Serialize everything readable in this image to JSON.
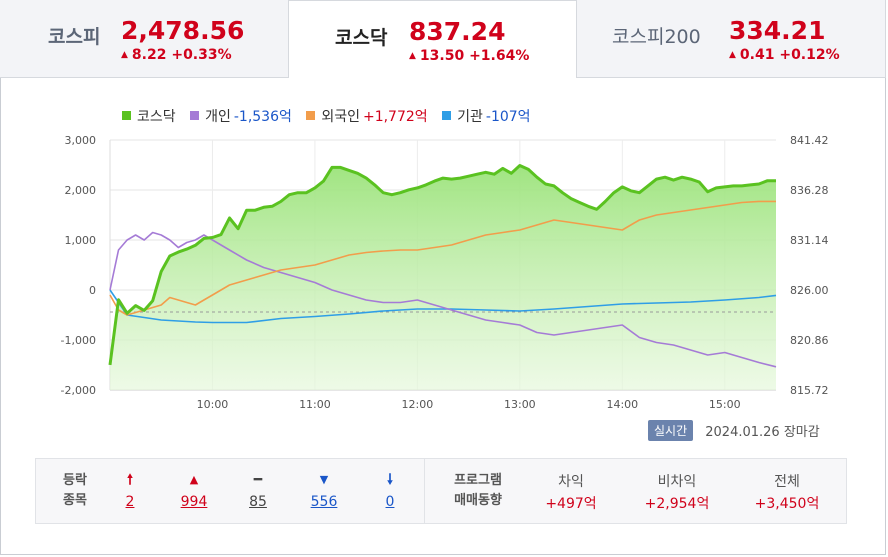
{
  "tabs": [
    {
      "name": "코스피",
      "value": "2,478.56",
      "change": "8.22 +0.33%"
    },
    {
      "name": "코스닥",
      "value": "837.24",
      "change": "13.50 +1.64%"
    },
    {
      "name": "코스피200",
      "value": "334.21",
      "change": "0.41 +0.12%"
    }
  ],
  "legend": {
    "kosdaq": "코스닥",
    "individual": "개인",
    "individual_value": "-1,536억",
    "foreign": "외국인",
    "foreign_value": "+1,772억",
    "institution": "기관",
    "institution_value": "-107억"
  },
  "colors": {
    "kosdaq": "#5ac220",
    "individual": "#a57bd6",
    "foreign": "#f29d4b",
    "institution": "#2f9ee6",
    "up": "#d0021b",
    "down": "#1a56c8"
  },
  "chart_data": {
    "type": "line",
    "x_ticks": [
      "10:00",
      "11:00",
      "12:00",
      "13:00",
      "14:00",
      "15:00"
    ],
    "left_axis": {
      "ticks": [
        "3,000",
        "2,000",
        "1,000",
        "0",
        "-1,000",
        "-2,000"
      ],
      "ylim": [
        -2000,
        3000
      ]
    },
    "right_axis": {
      "ticks": [
        "841.42",
        "836.28",
        "831.14",
        "826.00",
        "820.86",
        "815.72"
      ],
      "ylim": [
        815.72,
        841.42
      ]
    },
    "x_range": [
      "09:00",
      "15:30"
    ],
    "baseline_right": 823.74,
    "series": [
      {
        "name": "코스닥",
        "axis": "right",
        "type": "area",
        "x": [
          "09:00",
          "09:05",
          "09:10",
          "09:15",
          "09:20",
          "09:25",
          "09:30",
          "09:35",
          "09:40",
          "09:45",
          "09:50",
          "09:55",
          "10:00",
          "10:05",
          "10:10",
          "10:15",
          "10:20",
          "10:25",
          "10:30",
          "10:35",
          "10:40",
          "10:45",
          "10:50",
          "10:55",
          "11:00",
          "11:05",
          "11:10",
          "11:15",
          "11:20",
          "11:25",
          "11:30",
          "11:35",
          "11:40",
          "11:45",
          "11:50",
          "11:55",
          "12:00",
          "12:05",
          "12:10",
          "12:15",
          "12:20",
          "12:25",
          "12:30",
          "12:35",
          "12:40",
          "12:45",
          "12:50",
          "12:55",
          "13:00",
          "13:05",
          "13:10",
          "13:15",
          "13:20",
          "13:25",
          "13:30",
          "13:35",
          "13:40",
          "13:45",
          "13:50",
          "13:55",
          "14:00",
          "14:05",
          "14:10",
          "14:15",
          "14:20",
          "14:25",
          "14:30",
          "14:35",
          "14:40",
          "14:45",
          "14:50",
          "14:55",
          "15:00",
          "15:05",
          "15:10",
          "15:15",
          "15:20",
          "15:25",
          "15:30"
        ],
        "values": [
          818.3,
          825.0,
          823.6,
          824.4,
          823.9,
          824.9,
          827.9,
          829.5,
          829.9,
          830.2,
          830.6,
          831.3,
          831.4,
          831.7,
          833.4,
          832.3,
          834.2,
          834.2,
          834.5,
          834.6,
          835.1,
          835.8,
          836.0,
          836.0,
          836.5,
          837.2,
          838.6,
          838.6,
          838.3,
          838.0,
          837.5,
          836.8,
          836.0,
          835.8,
          836.0,
          836.3,
          836.5,
          836.8,
          837.2,
          837.5,
          837.4,
          837.5,
          837.7,
          837.9,
          838.1,
          837.9,
          838.5,
          838.0,
          838.8,
          838.4,
          837.6,
          836.9,
          836.7,
          836.0,
          835.4,
          835.0,
          834.6,
          834.3,
          835.1,
          836.0,
          836.6,
          836.2,
          836.0,
          836.7,
          837.4,
          837.6,
          837.3,
          837.6,
          837.4,
          837.1,
          836.1,
          836.5,
          836.6,
          836.7,
          836.7,
          836.8,
          836.9,
          837.24,
          837.24
        ]
      },
      {
        "name": "개인",
        "axis": "left",
        "x": [
          "09:00",
          "09:05",
          "09:10",
          "09:15",
          "09:20",
          "09:25",
          "09:30",
          "09:35",
          "09:40",
          "09:45",
          "09:50",
          "09:55",
          "10:00",
          "10:10",
          "10:20",
          "10:30",
          "10:40",
          "10:50",
          "11:00",
          "11:10",
          "11:20",
          "11:30",
          "11:40",
          "11:50",
          "12:00",
          "12:10",
          "12:20",
          "12:30",
          "12:40",
          "12:50",
          "13:00",
          "13:10",
          "13:20",
          "13:30",
          "13:40",
          "13:50",
          "14:00",
          "14:10",
          "14:20",
          "14:30",
          "14:40",
          "14:50",
          "15:00",
          "15:10",
          "15:20",
          "15:30"
        ],
        "values": [
          0,
          800,
          1000,
          1100,
          1000,
          1150,
          1100,
          1000,
          850,
          950,
          1000,
          1100,
          1000,
          800,
          600,
          450,
          350,
          250,
          150,
          0,
          -100,
          -200,
          -250,
          -250,
          -200,
          -300,
          -400,
          -500,
          -600,
          -650,
          -700,
          -850,
          -900,
          -850,
          -800,
          -750,
          -700,
          -950,
          -1050,
          -1100,
          -1200,
          -1300,
          -1250,
          -1350,
          -1450,
          -1536
        ]
      },
      {
        "name": "외국인",
        "axis": "left",
        "x": [
          "09:00",
          "09:05",
          "09:10",
          "09:15",
          "09:20",
          "09:25",
          "09:30",
          "09:35",
          "09:40",
          "09:45",
          "09:50",
          "09:55",
          "10:00",
          "10:10",
          "10:20",
          "10:30",
          "10:40",
          "10:50",
          "11:00",
          "11:10",
          "11:20",
          "11:30",
          "11:40",
          "11:50",
          "12:00",
          "12:10",
          "12:20",
          "12:30",
          "12:40",
          "12:50",
          "13:00",
          "13:10",
          "13:20",
          "13:30",
          "13:40",
          "13:50",
          "14:00",
          "14:10",
          "14:20",
          "14:30",
          "14:40",
          "14:50",
          "15:00",
          "15:10",
          "15:20",
          "15:30"
        ],
        "values": [
          -100,
          -400,
          -500,
          -450,
          -400,
          -350,
          -300,
          -150,
          -200,
          -250,
          -300,
          -200,
          -100,
          100,
          200,
          300,
          400,
          450,
          500,
          600,
          700,
          750,
          780,
          800,
          800,
          850,
          900,
          1000,
          1100,
          1150,
          1200,
          1300,
          1400,
          1350,
          1300,
          1250,
          1200,
          1400,
          1500,
          1550,
          1600,
          1650,
          1700,
          1750,
          1772,
          1772
        ]
      },
      {
        "name": "기관",
        "axis": "left",
        "x": [
          "09:00",
          "09:10",
          "09:20",
          "09:30",
          "09:40",
          "09:50",
          "10:00",
          "10:20",
          "10:40",
          "11:00",
          "11:20",
          "11:40",
          "12:00",
          "12:20",
          "12:40",
          "13:00",
          "13:20",
          "13:40",
          "14:00",
          "14:20",
          "14:40",
          "15:00",
          "15:20",
          "15:30"
        ],
        "values": [
          0,
          -500,
          -550,
          -600,
          -620,
          -640,
          -650,
          -650,
          -570,
          -530,
          -480,
          -420,
          -380,
          -380,
          -400,
          -420,
          -380,
          -330,
          -280,
          -260,
          -240,
          -200,
          -150,
          -107
        ]
      }
    ]
  },
  "footer": {
    "realtime": "실시간",
    "date": "2024.01.26",
    "status": "장마감"
  },
  "stats": {
    "label_top": "등락",
    "label_bottom": "종목",
    "upper_limit": "2",
    "up": "994",
    "flat": "85",
    "down": "556",
    "lower_limit": "0",
    "program_top": "프로그램",
    "program_bottom": "매매동향",
    "arb_label": "차익",
    "arb_value": "+497억",
    "nonarb_label": "비차익",
    "nonarb_value": "+2,954억",
    "total_label": "전체",
    "total_value": "+3,450억",
    "icons": {
      "upper_limit": "arrow-up-bold-icon",
      "up": "triangle-up-icon",
      "flat": "dash-icon",
      "down": "triangle-down-icon",
      "lower_limit": "arrow-down-bold-icon"
    }
  }
}
